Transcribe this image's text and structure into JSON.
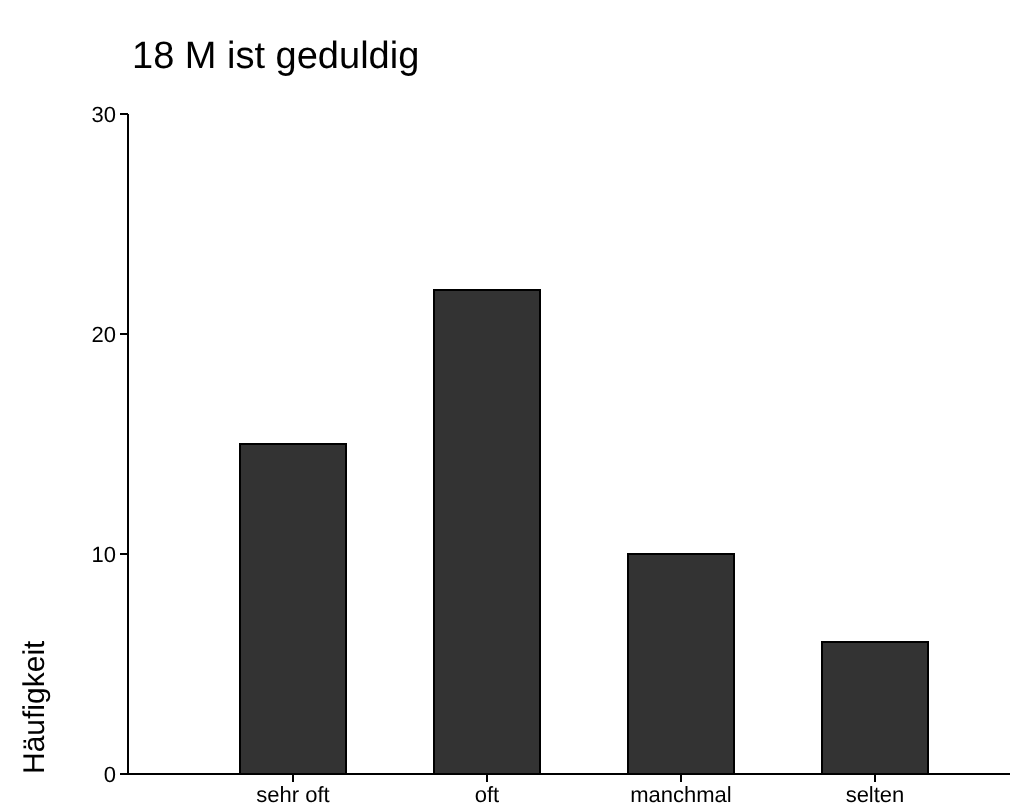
{
  "chart_data": {
    "type": "bar",
    "title": "18 M ist geduldig",
    "ylabel": "Häufigkeit",
    "categories": [
      "sehr oft",
      "oft",
      "manchmal",
      "selten"
    ],
    "values": [
      15,
      22,
      10,
      6
    ],
    "color": "#333333",
    "ylim": [
      0,
      30
    ],
    "yticks": [
      0,
      10,
      20,
      30
    ],
    "grid": false
  }
}
